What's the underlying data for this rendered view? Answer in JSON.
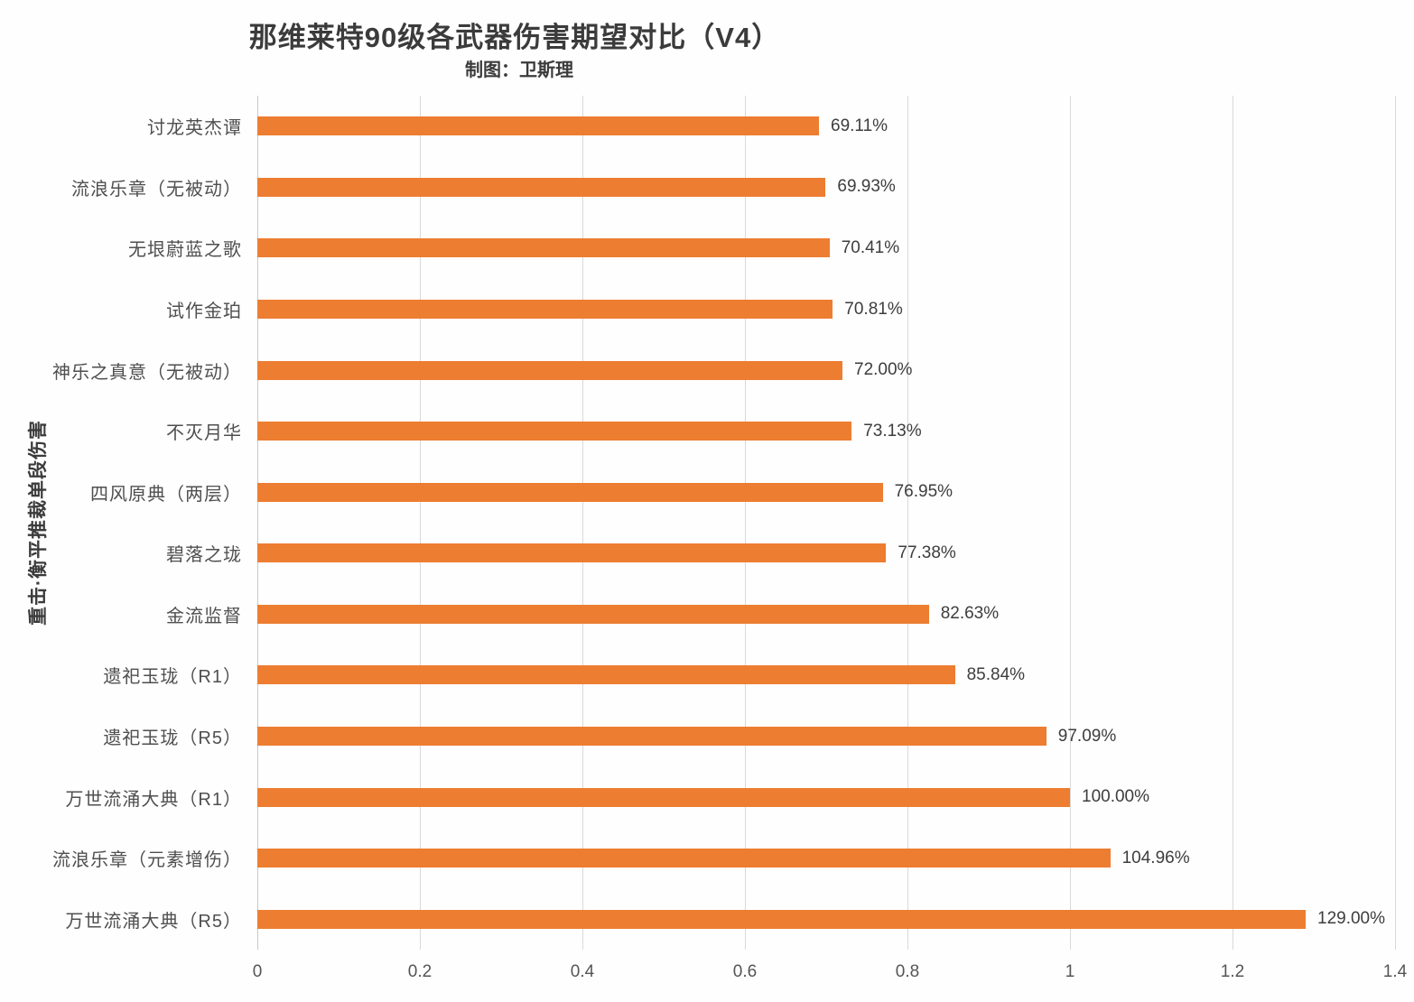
{
  "title": "那维莱特90级各武器伤害期望对比（V4）",
  "subtitle": "制图：卫斯理",
  "colors": {
    "bar": "#ed7d31",
    "gridline": "#d9d9d9",
    "axis_line": "#c8c8c8",
    "title_text": "#3b3b3b",
    "label_text": "#4f4f4f",
    "value_text": "#3d3d3d"
  },
  "chart_data": {
    "type": "bar",
    "orientation": "horizontal",
    "title": "那维莱特90级各武器伤害期望对比（V4）",
    "subtitle": "制图：卫斯理",
    "ylabel": "重击·衡平推裁单段伤害",
    "xlabel": "",
    "xlim": [
      0,
      1.4
    ],
    "grid": true,
    "legend": false,
    "x_ticks": [
      "0",
      "0.2",
      "0.4",
      "0.6",
      "0.8",
      "1",
      "1.2",
      "1.4"
    ],
    "x_tick_values": [
      0,
      0.2,
      0.4,
      0.6,
      0.8,
      1,
      1.2,
      1.4
    ],
    "categories": [
      "讨龙英杰谭",
      "流浪乐章（无被动）",
      "无垠蔚蓝之歌",
      "试作金珀",
      "神乐之真意（无被动）",
      "不灭月华",
      "四风原典（两层）",
      "碧落之珑",
      "金流监督",
      "遗祀玉珑（R1）",
      "遗祀玉珑（R5）",
      "万世流涌大典（R1）",
      "流浪乐章（元素增伤）",
      "万世流涌大典（R5）"
    ],
    "values": [
      0.6911,
      0.6993,
      0.7041,
      0.7081,
      0.72,
      0.7313,
      0.7695,
      0.7738,
      0.8263,
      0.8584,
      0.9709,
      1.0,
      1.0496,
      1.29
    ],
    "value_labels": [
      "69.11%",
      "69.93%",
      "70.41%",
      "70.81%",
      "72.00%",
      "73.13%",
      "76.95%",
      "77.38%",
      "82.63%",
      "85.84%",
      "97.09%",
      "100.00%",
      "104.96%",
      "129.00%"
    ]
  }
}
